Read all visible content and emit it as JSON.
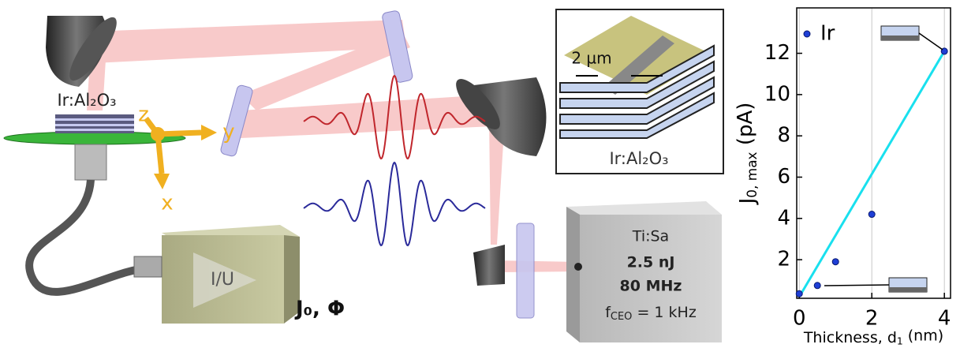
{
  "diagram": {
    "sample_label": "Ir:Al₂O₃",
    "axis_z": "z",
    "axis_y": "y",
    "axis_x": "x",
    "amplifier": "I/U",
    "signal": "J₀, Φ",
    "laser": {
      "name": "Ti:Sa",
      "energy": "2.5 nJ",
      "rate": "80 MHz",
      "ceo": [
        "f",
        "CEO",
        " = 1 kHz"
      ]
    },
    "inset": {
      "scale": "2 µm",
      "label": "Ir:Al₂O₃"
    }
  },
  "chart_data": {
    "type": "scatter",
    "series": [
      {
        "name": "Ir",
        "color": "#1f3fd6",
        "x": [
          0,
          0.5,
          1,
          2,
          4
        ],
        "values": [
          0.35,
          0.75,
          1.9,
          4.2,
          12.1
        ]
      }
    ],
    "fit": {
      "color": "#19e0ee",
      "x": [
        0,
        4
      ],
      "values": [
        0.2,
        12.1
      ]
    },
    "xlabel": [
      "Thickness, d",
      "1",
      " (nm)"
    ],
    "ylabel": [
      "J",
      "0, max",
      " (pA)"
    ],
    "xlim": [
      -0.07,
      4.17
    ],
    "ylim": [
      0.13,
      14.2
    ],
    "xticks": [
      0,
      2,
      4
    ],
    "yticks": [
      2,
      4,
      6,
      8,
      10,
      12
    ],
    "xgrid": true,
    "legend": "upper left"
  }
}
